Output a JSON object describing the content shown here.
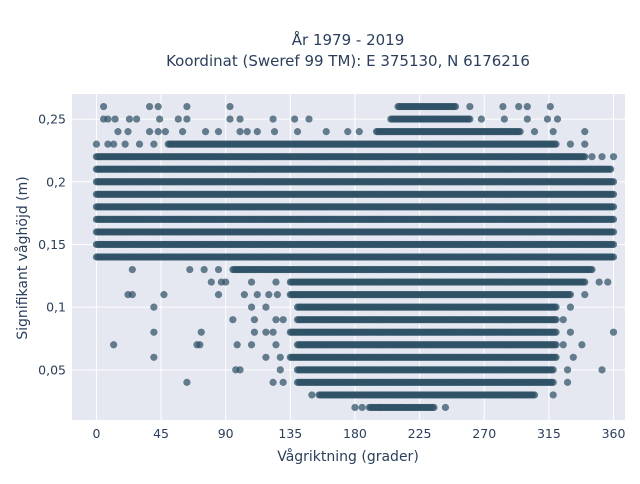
{
  "chart_data": {
    "type": "scatter",
    "title_line1": "År 1979 - 2019",
    "title_line2": "Koordinat (Sweref 99 TM): E 375130, N 6176216",
    "xlabel": "Vågriktning (grader)",
    "ylabel": "Signifikant våghöjd (m)",
    "xlim": [
      -17,
      368
    ],
    "ylim": [
      0.01,
      0.27
    ],
    "x_ticks": [
      0,
      45,
      90,
      135,
      180,
      225,
      270,
      315,
      360
    ],
    "x_tick_labels": [
      "0",
      "45",
      "90",
      "135",
      "180",
      "225",
      "270",
      "315",
      "360"
    ],
    "y_ticks": [
      0.05,
      0.1,
      0.15,
      0.2,
      0.25
    ],
    "y_tick_labels": [
      "0,05",
      "0,1",
      "0,15",
      "0,2",
      "0,25"
    ],
    "grid": true,
    "colors": {
      "marker": "#2f5266",
      "plot_bg": "#e5e8f0",
      "grid": "#ffffff",
      "text": "#2a3f5f"
    },
    "bands": [
      {
        "y": 0.26,
        "x_range": [
          210,
          250
        ],
        "sparse": [
          [
            5,
            0.26
          ],
          [
            37,
            0.26
          ],
          [
            43,
            0.26
          ],
          [
            63,
            0.26
          ],
          [
            93,
            0.26
          ],
          [
            260,
            0.26
          ],
          [
            283,
            0.26
          ],
          [
            294,
            0.26
          ],
          [
            300,
            0.26
          ],
          [
            316,
            0.26
          ]
        ]
      },
      {
        "y": 0.25,
        "x_range": [
          205,
          260
        ],
        "sparse": [
          [
            5,
            0.25
          ],
          [
            8,
            0.25
          ],
          [
            13,
            0.25
          ],
          [
            23,
            0.25
          ],
          [
            28,
            0.25
          ],
          [
            44,
            0.25
          ],
          [
            57,
            0.25
          ],
          [
            63,
            0.25
          ],
          [
            93,
            0.25
          ],
          [
            100,
            0.25
          ],
          [
            123,
            0.25
          ],
          [
            138,
            0.25
          ],
          [
            148,
            0.25
          ],
          [
            268,
            0.25
          ],
          [
            284,
            0.25
          ],
          [
            300,
            0.25
          ],
          [
            314,
            0.25
          ],
          [
            321,
            0.25
          ]
        ]
      },
      {
        "y": 0.24,
        "x_range": [
          195,
          295
        ],
        "sparse": [
          [
            15,
            0.24
          ],
          [
            22,
            0.24
          ],
          [
            37,
            0.24
          ],
          [
            43,
            0.24
          ],
          [
            48,
            0.24
          ],
          [
            60,
            0.24
          ],
          [
            76,
            0.24
          ],
          [
            85,
            0.24
          ],
          [
            100,
            0.24
          ],
          [
            105,
            0.24
          ],
          [
            112,
            0.24
          ],
          [
            124,
            0.24
          ],
          [
            140,
            0.24
          ],
          [
            160,
            0.24
          ],
          [
            175,
            0.24
          ],
          [
            183,
            0.24
          ],
          [
            305,
            0.24
          ],
          [
            318,
            0.24
          ],
          [
            340,
            0.24
          ]
        ]
      },
      {
        "y": 0.23,
        "x_range": [
          50,
          320
        ],
        "sparse": [
          [
            0,
            0.23
          ],
          [
            8,
            0.23
          ],
          [
            12,
            0.23
          ],
          [
            20,
            0.23
          ],
          [
            30,
            0.23
          ],
          [
            40,
            0.23
          ],
          [
            330,
            0.23
          ],
          [
            340,
            0.23
          ]
        ]
      },
      {
        "y": 0.22,
        "x_range": [
          0,
          340
        ],
        "sparse": [
          [
            345,
            0.22
          ],
          [
            352,
            0.22
          ],
          [
            360,
            0.22
          ]
        ]
      },
      {
        "y": 0.21,
        "x_range": [
          0,
          358
        ],
        "sparse": []
      },
      {
        "y": 0.2,
        "x_range": [
          0,
          360
        ],
        "sparse": []
      },
      {
        "y": 0.19,
        "x_range": [
          0,
          360
        ],
        "sparse": []
      },
      {
        "y": 0.18,
        "x_range": [
          0,
          360
        ],
        "sparse": []
      },
      {
        "y": 0.17,
        "x_range": [
          0,
          360
        ],
        "sparse": []
      },
      {
        "y": 0.16,
        "x_range": [
          0,
          360
        ],
        "sparse": []
      },
      {
        "y": 0.15,
        "x_range": [
          0,
          360
        ],
        "sparse": []
      },
      {
        "y": 0.14,
        "x_range": [
          0,
          360
        ],
        "sparse": []
      },
      {
        "y": 0.13,
        "x_range": [
          95,
          345
        ],
        "sparse": [
          [
            25,
            0.13
          ],
          [
            65,
            0.13
          ],
          [
            75,
            0.13
          ],
          [
            85,
            0.13
          ]
        ]
      },
      {
        "y": 0.12,
        "x_range": [
          135,
          340
        ],
        "sparse": [
          [
            80,
            0.12
          ],
          [
            87,
            0.12
          ],
          [
            90,
            0.12
          ],
          [
            108,
            0.12
          ],
          [
            125,
            0.12
          ],
          [
            350,
            0.12
          ],
          [
            356,
            0.12
          ]
        ]
      },
      {
        "y": 0.11,
        "x_range": [
          135,
          330
        ],
        "sparse": [
          [
            22,
            0.11
          ],
          [
            25,
            0.11
          ],
          [
            47,
            0.11
          ],
          [
            85,
            0.11
          ],
          [
            103,
            0.11
          ],
          [
            112,
            0.11
          ],
          [
            120,
            0.11
          ],
          [
            126,
            0.11
          ],
          [
            340,
            0.11
          ]
        ]
      },
      {
        "y": 0.1,
        "x_range": [
          140,
          320
        ],
        "sparse": [
          [
            40,
            0.1
          ],
          [
            108,
            0.1
          ],
          [
            118,
            0.1
          ],
          [
            330,
            0.1
          ]
        ]
      },
      {
        "y": 0.09,
        "x_range": [
          140,
          320
        ],
        "sparse": [
          [
            95,
            0.09
          ],
          [
            110,
            0.09
          ],
          [
            125,
            0.09
          ],
          [
            130,
            0.09
          ],
          [
            325,
            0.09
          ]
        ]
      },
      {
        "y": 0.08,
        "x_range": [
          135,
          320
        ],
        "sparse": [
          [
            40,
            0.08
          ],
          [
            73,
            0.08
          ],
          [
            110,
            0.08
          ],
          [
            118,
            0.08
          ],
          [
            123,
            0.08
          ],
          [
            330,
            0.08
          ],
          [
            360,
            0.08
          ]
        ]
      },
      {
        "y": 0.07,
        "x_range": [
          140,
          320
        ],
        "sparse": [
          [
            12,
            0.07
          ],
          [
            70,
            0.07
          ],
          [
            72,
            0.07
          ],
          [
            98,
            0.07
          ],
          [
            108,
            0.07
          ],
          [
            125,
            0.07
          ],
          [
            325,
            0.07
          ],
          [
            338,
            0.07
          ]
        ]
      },
      {
        "y": 0.06,
        "x_range": [
          135,
          320
        ],
        "sparse": [
          [
            40,
            0.06
          ],
          [
            118,
            0.06
          ],
          [
            128,
            0.06
          ],
          [
            332,
            0.06
          ]
        ]
      },
      {
        "y": 0.05,
        "x_range": [
          140,
          318
        ],
        "sparse": [
          [
            97,
            0.05
          ],
          [
            100,
            0.05
          ],
          [
            128,
            0.05
          ],
          [
            328,
            0.05
          ],
          [
            352,
            0.05
          ]
        ]
      },
      {
        "y": 0.04,
        "x_range": [
          140,
          318
        ],
        "sparse": [
          [
            63,
            0.04
          ],
          [
            123,
            0.04
          ],
          [
            130,
            0.04
          ],
          [
            328,
            0.04
          ]
        ]
      },
      {
        "y": 0.03,
        "x_range": [
          155,
          305
        ],
        "sparse": [
          [
            150,
            0.03
          ],
          [
            318,
            0.03
          ]
        ]
      },
      {
        "y": 0.02,
        "x_range": [
          190,
          235
        ],
        "sparse": [
          [
            180,
            0.02
          ],
          [
            185,
            0.02
          ],
          [
            198,
            0.02
          ],
          [
            213,
            0.02
          ],
          [
            243,
            0.02
          ]
        ]
      }
    ]
  }
}
